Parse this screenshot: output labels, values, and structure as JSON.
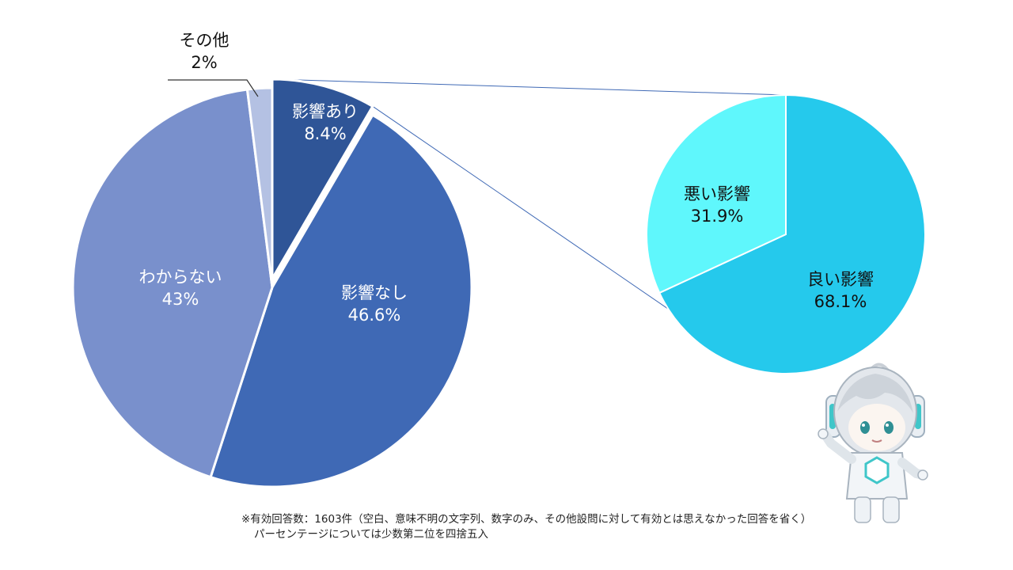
{
  "colors": {
    "main_affected": "#2f5597",
    "main_not_affected": "#3f69b5",
    "main_unknown": "#7990cc",
    "main_other": "#b4c1e3",
    "sub_good": "#25c9ec",
    "sub_bad": "#5ff7fc",
    "connector": "#3f69b5",
    "label_light": "#ffffff",
    "label_dark": "#111111"
  },
  "chart_data": [
    {
      "type": "pie",
      "role": "main",
      "title": "",
      "start": "12 o'clock, clockwise",
      "slices": [
        {
          "key": "affected",
          "label": "影響あり",
          "value": 8.4,
          "value_label": "8.4%",
          "exploded": true
        },
        {
          "key": "not_affected",
          "label": "影響なし",
          "value": 46.6,
          "value_label": "46.6%"
        },
        {
          "key": "unknown",
          "label": "わからない",
          "value": 43,
          "value_label": "43%"
        },
        {
          "key": "other",
          "label": "その他",
          "value": 2,
          "value_label": "2%",
          "label_outside": true
        }
      ]
    },
    {
      "type": "pie",
      "role": "breakdown-of-影響あり",
      "title": "",
      "start": "12 o'clock, clockwise",
      "slices": [
        {
          "key": "good",
          "label": "良い影響",
          "value": 68.1,
          "value_label": "68.1%"
        },
        {
          "key": "bad",
          "label": "悪い影響",
          "value": 31.9,
          "value_label": "31.9%"
        }
      ]
    }
  ],
  "footnote": {
    "line1": "※有効回答数：1603件（空白、意味不明の文字列、数字のみ、その他設問に対して有効とは思えなかった回答を省く）",
    "line2": "パーセンテージについては少数第二位を四捨五入"
  }
}
